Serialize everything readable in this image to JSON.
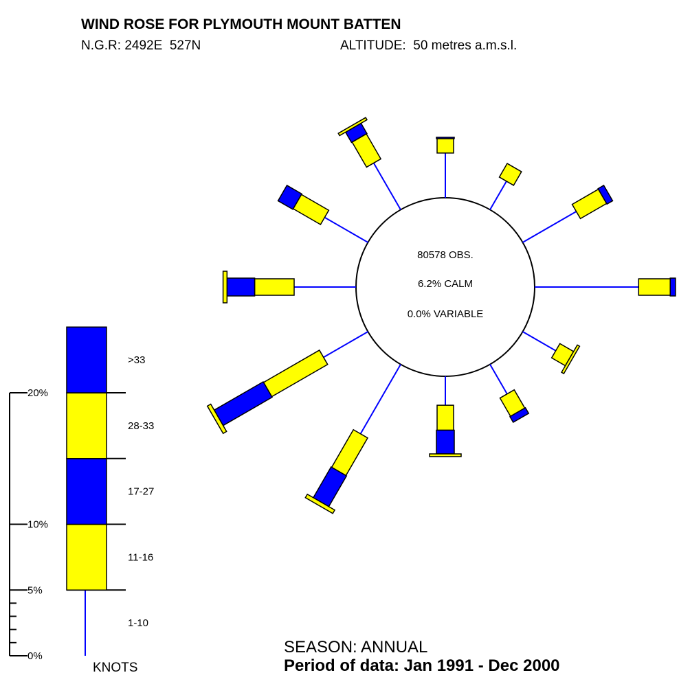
{
  "chart_data": {
    "type": "windrose",
    "title": "WIND ROSE FOR PLYMOUTH MOUNT BATTEN",
    "subtitle_left": "N.G.R: 2492E  527N",
    "subtitle_right": "ALTITUDE:  50 metres a.m.s.l.",
    "center_texts": [
      "80578 OBS.",
      "6.2% CALM",
      "0.0% VARIABLE"
    ],
    "legend_title": "KNOTS",
    "footer": [
      "SEASON: ANNUAL",
      "Period of data: Jan 1991 - Dec 2000"
    ],
    "ylim": [
      0,
      20
    ],
    "yticks": [
      {
        "value": 0,
        "label": "0%"
      },
      {
        "value": 5,
        "label": "5%"
      },
      {
        "value": 10,
        "label": "10%"
      },
      {
        "value": 20,
        "label": "20%"
      }
    ],
    "minor_yticks": [
      1,
      2,
      3,
      4
    ],
    "legend_band": 5,
    "series": [
      {
        "name": "1-10",
        "color": "#0000ff",
        "values": [
          3.4,
          2.5,
          4.7,
          7.9,
          2.9,
          2.6,
          2.2,
          6.1,
          3.9,
          4.7,
          3.8,
          4.1
        ]
      },
      {
        "name": "11-16",
        "color": "#ffff00",
        "values": [
          1.1,
          1.2,
          2.3,
          2.4,
          1.2,
          1.6,
          1.9,
          3.3,
          4.9,
          3.0,
          2.4,
          2.2
        ]
      },
      {
        "name": "17-27",
        "color": "#0000ff",
        "values": [
          0.1,
          0,
          0.5,
          0.4,
          0,
          0.5,
          1.8,
          2.7,
          4.3,
          2.1,
          1.3,
          0.9
        ]
      },
      {
        "name": "28-33",
        "color": "#ffff00",
        "values": [
          0,
          0,
          0,
          0,
          0.2,
          0,
          0.2,
          0.3,
          0.3,
          0.3,
          0,
          0.2
        ]
      },
      {
        "name": ">33",
        "color": "#0000ff",
        "values": [
          0,
          0,
          0,
          0,
          0,
          0,
          0,
          0,
          0,
          0,
          0,
          0
        ]
      }
    ]
  }
}
